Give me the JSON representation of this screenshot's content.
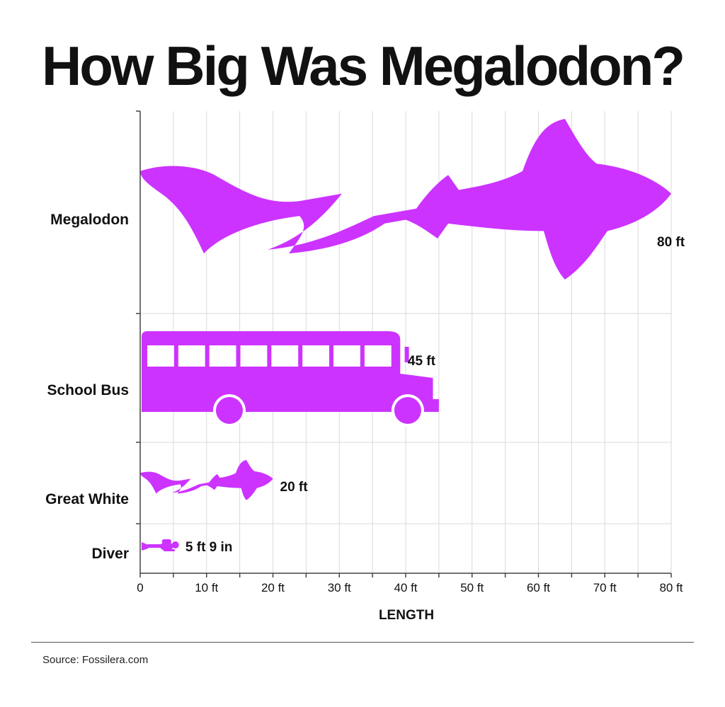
{
  "title": "How Big Was Megalodon?",
  "source": "Source: Fossilera.com",
  "colors": {
    "silhouette": "#cc33ff",
    "grid": "#d9d9d9",
    "axis": "#444444",
    "text": "#111111"
  },
  "chart_data": {
    "type": "bar",
    "orientation": "horizontal",
    "title": "How Big Was Megalodon?",
    "xlabel": "LENGTH",
    "ylabel": "",
    "xlim": [
      0,
      80
    ],
    "x_ticks": [
      0,
      10,
      20,
      30,
      40,
      50,
      60,
      70,
      80
    ],
    "x_tick_labels": [
      "0",
      "10 ft",
      "20 ft",
      "30 ft",
      "40 ft",
      "50 ft",
      "60 ft",
      "70 ft",
      "80 ft"
    ],
    "grid": true,
    "categories": [
      "Megalodon",
      "School Bus",
      "Great White",
      "Diver"
    ],
    "values": [
      80,
      45,
      20,
      5.75
    ],
    "value_labels": [
      "80 ft",
      "45 ft",
      "20 ft",
      "5 ft 9 in"
    ],
    "marks": [
      "megalodon-shark-icon",
      "school-bus-icon",
      "great-white-shark-icon",
      "scuba-diver-icon"
    ]
  }
}
